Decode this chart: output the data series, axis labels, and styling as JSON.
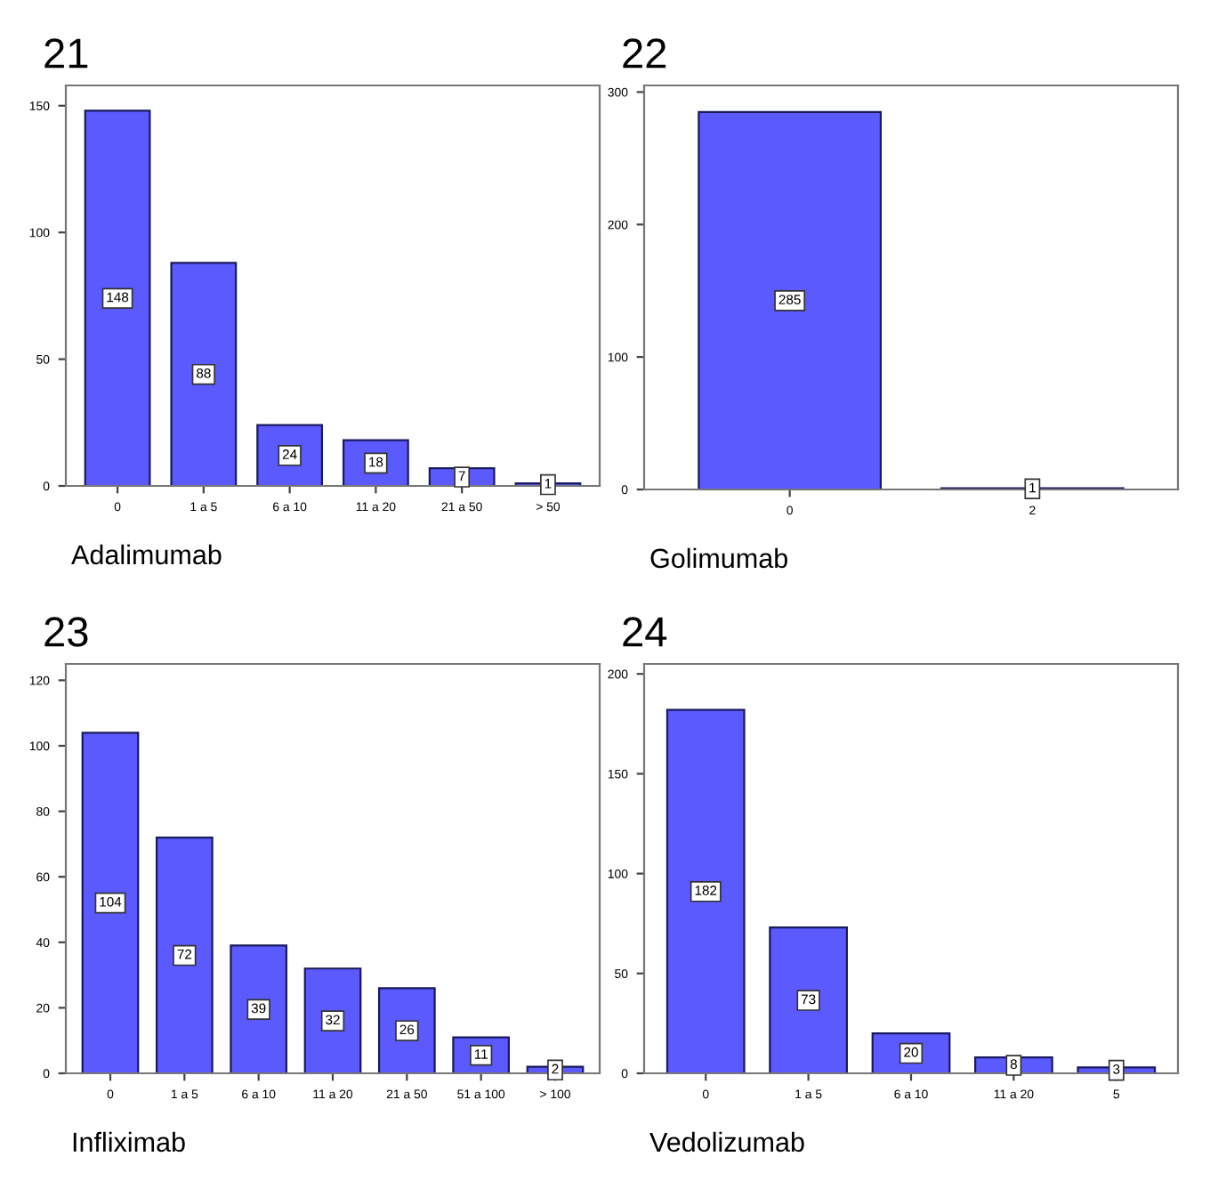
{
  "chart_data": [
    {
      "type": "bar",
      "title": "21",
      "xlabel": "Adalimumab",
      "categories": [
        "0",
        "1 a 5",
        "6 a 10",
        "11 a 20",
        "21 a 50",
        "> 50"
      ],
      "values": [
        148,
        88,
        24,
        18,
        7,
        1
      ],
      "color": "#5a5aff",
      "ylim": [
        0,
        158
      ],
      "yticks": [
        0,
        50,
        100,
        150
      ],
      "data_labels": true,
      "grid": false,
      "legend": false
    },
    {
      "type": "bar",
      "title": "22",
      "xlabel": "Golimumab",
      "categories": [
        "0",
        "2"
      ],
      "values": [
        285,
        1
      ],
      "color": "#5a5aff",
      "ylim": [
        0,
        305
      ],
      "yticks": [
        0,
        100,
        200,
        300
      ],
      "data_labels": true,
      "grid": false,
      "legend": false
    },
    {
      "type": "bar",
      "title": "23",
      "xlabel": "Infliximab",
      "categories": [
        "0",
        "1 a 5",
        "6 a 10",
        "11 a 20",
        "21 a 50",
        "51 a 100",
        "> 100"
      ],
      "values": [
        104,
        72,
        39,
        32,
        26,
        11,
        2
      ],
      "color": "#5a5aff",
      "ylim": [
        0,
        125
      ],
      "yticks": [
        0,
        20,
        40,
        60,
        80,
        100,
        120
      ],
      "data_labels": true,
      "grid": false,
      "legend": false
    },
    {
      "type": "bar",
      "title": "24",
      "xlabel": "Vedolizumab",
      "categories": [
        "0",
        "1 a 5",
        "6 a 10",
        "11 a 20",
        "5"
      ],
      "values": [
        182,
        73,
        20,
        8,
        3
      ],
      "color": "#5a5aff",
      "ylim": [
        0,
        205
      ],
      "yticks": [
        0,
        50,
        100,
        150,
        200
      ],
      "data_labels": true,
      "grid": false,
      "legend": false
    }
  ]
}
